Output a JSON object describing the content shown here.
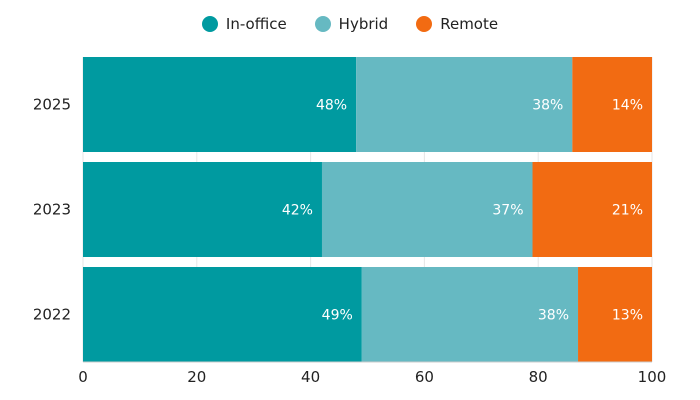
{
  "chart_data": {
    "type": "bar",
    "orientation": "horizontal",
    "stacked": true,
    "categories": [
      "2025",
      "2023",
      "2022"
    ],
    "series": [
      {
        "name": "In-office",
        "color": "#009aa0",
        "values": [
          48,
          42,
          49
        ]
      },
      {
        "name": "Hybrid",
        "color": "#66b9c2",
        "values": [
          38,
          37,
          38
        ]
      },
      {
        "name": "Remote",
        "color": "#f26b12",
        "values": [
          14,
          21,
          13
        ]
      }
    ],
    "data_labels": [
      [
        "48%",
        "38%",
        "14%"
      ],
      [
        "42%",
        "37%",
        "21%"
      ],
      [
        "49%",
        "38%",
        "13%"
      ]
    ],
    "xlim": [
      0,
      100
    ],
    "x_ticks": [
      "0",
      "20",
      "40",
      "60",
      "80",
      "100"
    ],
    "grid": true,
    "legend_position": "top"
  }
}
